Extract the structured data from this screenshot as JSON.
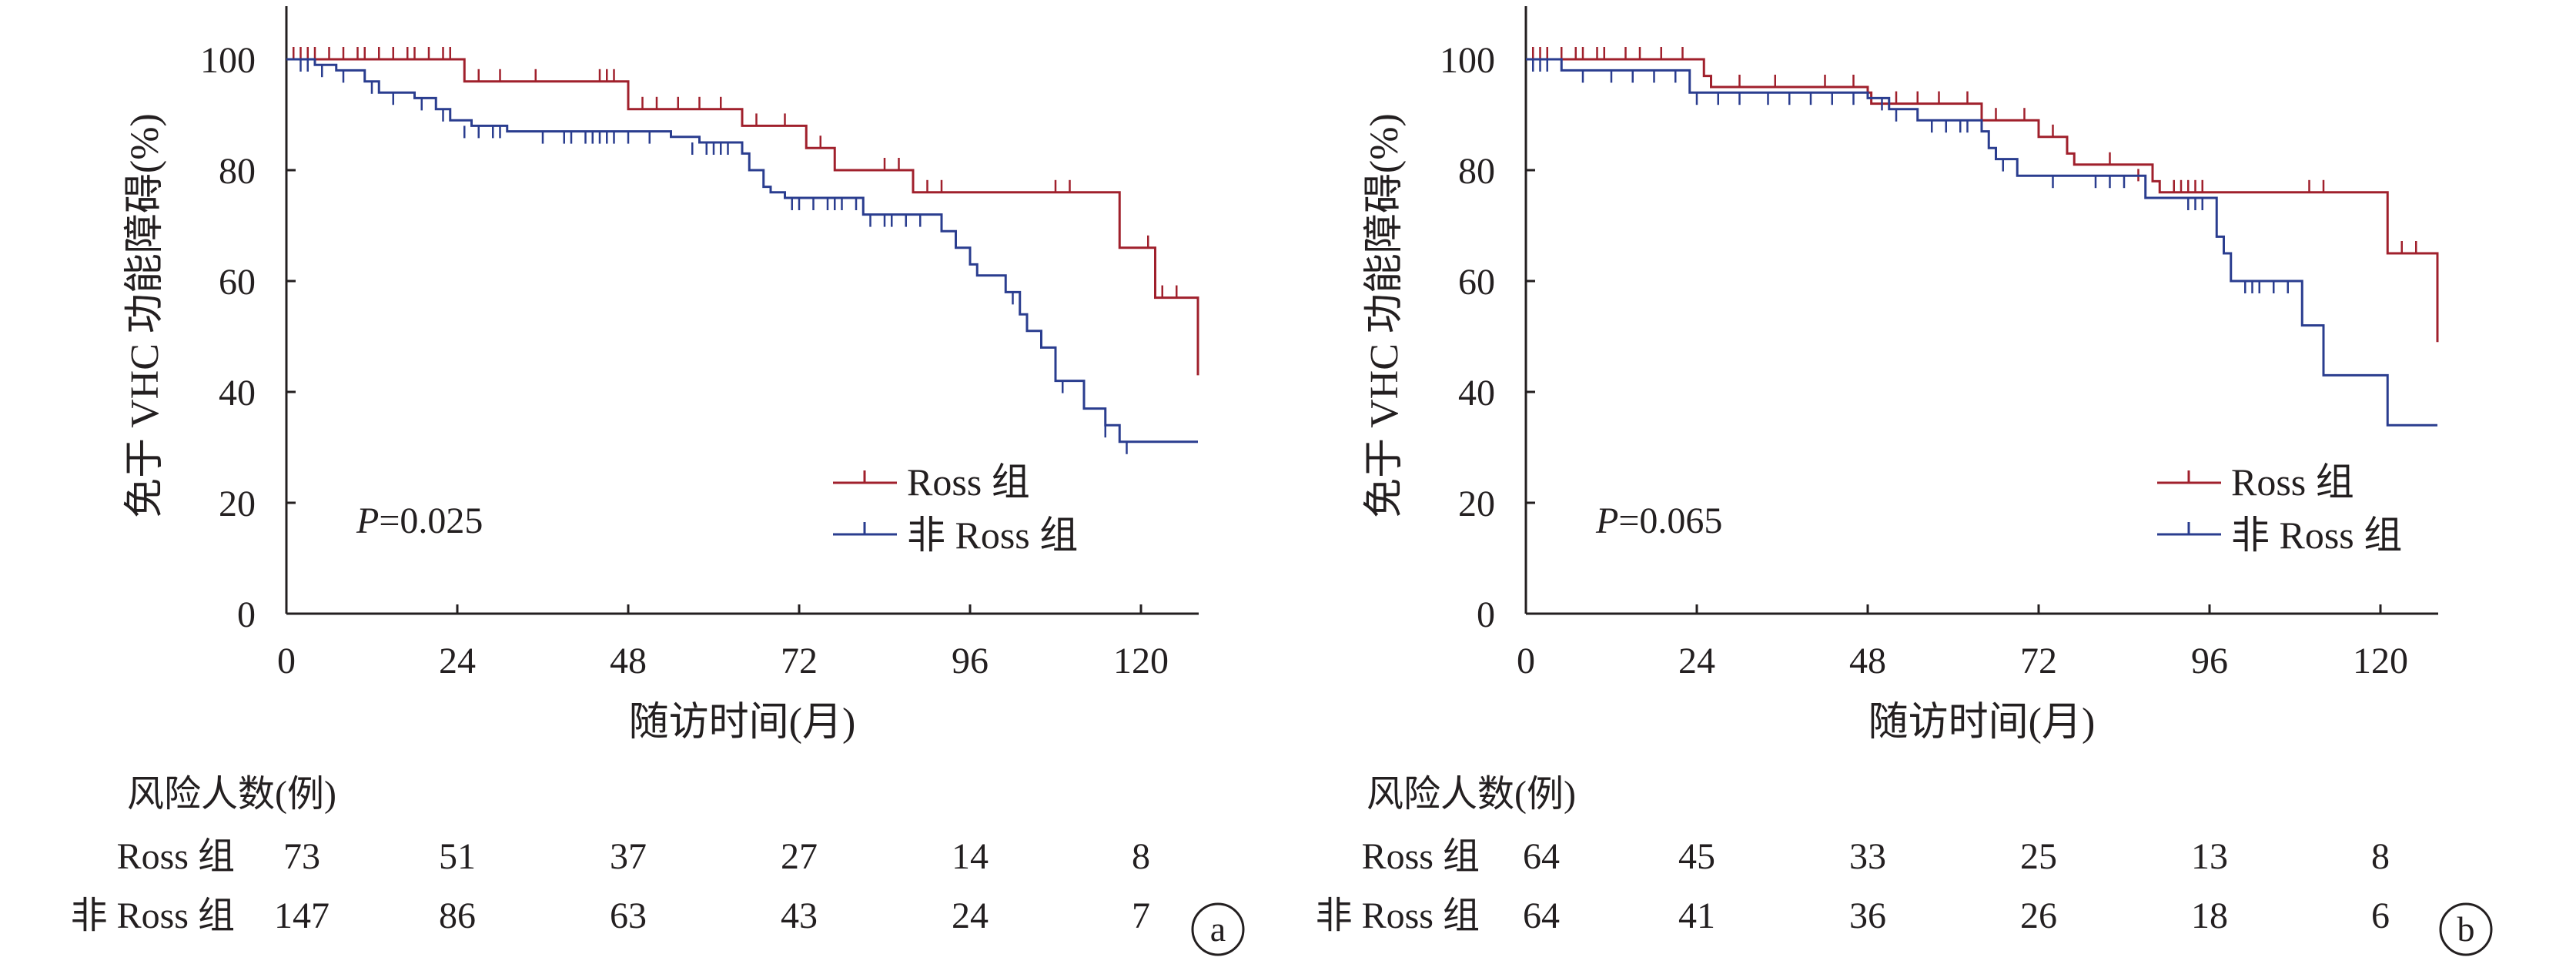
{
  "figure": {
    "panels": [
      {
        "letter": "a",
        "p_label": "P",
        "p_rest": "=0.025",
        "risk_title": "风险人数(例)",
        "risk_rows": [
          {
            "label": "Ross 组",
            "values": [
              "73",
              "51",
              "37",
              "27",
              "14",
              "8"
            ]
          },
          {
            "label": "非 Ross 组",
            "values": [
              "147",
              "86",
              "63",
              "43",
              "24",
              "7"
            ]
          }
        ]
      },
      {
        "letter": "b",
        "p_label": "P",
        "p_rest": "=0.065",
        "risk_title": "风险人数(例)",
        "risk_rows": [
          {
            "label": "Ross 组",
            "values": [
              "64",
              "45",
              "33",
              "25",
              "13",
              "8"
            ]
          },
          {
            "label": "非 Ross 组",
            "values": [
              "64",
              "41",
              "36",
              "26",
              "18",
              "6"
            ]
          }
        ]
      }
    ]
  },
  "colors": {
    "ross": "#a0202c",
    "non_ross": "#2a3d8f",
    "axis": "#231f20"
  },
  "chart_data": [
    {
      "type": "line",
      "title": "",
      "xlabel": "随访时间(月)",
      "ylabel": "免于 VHC 功能障碍(%)",
      "xlim": [
        0,
        128
      ],
      "ylim": [
        0,
        110
      ],
      "xticks": [
        0,
        24,
        48,
        72,
        96,
        120
      ],
      "yticks": [
        0,
        20,
        40,
        60,
        80,
        100
      ],
      "grid": false,
      "legend_position": "lower-right",
      "series": [
        {
          "name": "Ross 组",
          "color": "#a0202c",
          "steps": [
            [
              0,
              100
            ],
            [
              25,
              96
            ],
            [
              48,
              91
            ],
            [
              64,
              88
            ],
            [
              73,
              84
            ],
            [
              77,
              80
            ],
            [
              88,
              76
            ],
            [
              117,
              66
            ],
            [
              122,
              57
            ],
            [
              128,
              43
            ]
          ],
          "censored": [
            [
              1,
              100
            ],
            [
              2,
              100
            ],
            [
              3,
              100
            ],
            [
              4,
              100
            ],
            [
              6,
              100
            ],
            [
              8,
              100
            ],
            [
              10,
              100
            ],
            [
              11,
              100
            ],
            [
              13,
              100
            ],
            [
              15,
              100
            ],
            [
              17,
              100
            ],
            [
              18,
              100
            ],
            [
              20,
              100
            ],
            [
              22,
              100
            ],
            [
              23,
              100
            ],
            [
              27,
              96
            ],
            [
              30,
              96
            ],
            [
              35,
              96
            ],
            [
              44,
              96
            ],
            [
              45,
              96
            ],
            [
              46,
              96
            ],
            [
              50,
              91
            ],
            [
              52,
              91
            ],
            [
              55,
              91
            ],
            [
              58,
              91
            ],
            [
              61,
              91
            ],
            [
              66,
              88
            ],
            [
              70,
              88
            ],
            [
              75,
              84
            ],
            [
              84,
              80
            ],
            [
              86,
              80
            ],
            [
              90,
              76
            ],
            [
              92,
              76
            ],
            [
              108,
              76
            ],
            [
              110,
              76
            ],
            [
              121,
              66
            ],
            [
              123,
              57
            ],
            [
              125,
              57
            ]
          ]
        },
        {
          "name": "非 Ross 组",
          "color": "#2a3d8f",
          "steps": [
            [
              0,
              100
            ],
            [
              4,
              99
            ],
            [
              7,
              98
            ],
            [
              11,
              96
            ],
            [
              13,
              94
            ],
            [
              18,
              93
            ],
            [
              21,
              91
            ],
            [
              23,
              89
            ],
            [
              26,
              88
            ],
            [
              31,
              87
            ],
            [
              54,
              86
            ],
            [
              58,
              85
            ],
            [
              64,
              83
            ],
            [
              65,
              80
            ],
            [
              67,
              77
            ],
            [
              68,
              76
            ],
            [
              70,
              75
            ],
            [
              81,
              72
            ],
            [
              92,
              69
            ],
            [
              94,
              66
            ],
            [
              96,
              63
            ],
            [
              97,
              61
            ],
            [
              101,
              58
            ],
            [
              103,
              54
            ],
            [
              104,
              51
            ],
            [
              106,
              48
            ],
            [
              108,
              42
            ],
            [
              112,
              37
            ],
            [
              115,
              34
            ],
            [
              117,
              31
            ],
            [
              128,
              31
            ]
          ],
          "censored": [
            [
              2,
              100
            ],
            [
              3,
              100
            ],
            [
              5,
              99
            ],
            [
              8,
              98
            ],
            [
              12,
              96
            ],
            [
              15,
              94
            ],
            [
              19,
              93
            ],
            [
              22,
              91
            ],
            [
              25,
              88
            ],
            [
              27,
              88
            ],
            [
              29,
              88
            ],
            [
              30,
              88
            ],
            [
              36,
              87
            ],
            [
              39,
              87
            ],
            [
              40,
              87
            ],
            [
              42,
              87
            ],
            [
              43,
              87
            ],
            [
              44,
              87
            ],
            [
              45,
              87
            ],
            [
              46,
              87
            ],
            [
              48,
              87
            ],
            [
              51,
              87
            ],
            [
              57,
              85
            ],
            [
              59,
              85
            ],
            [
              60,
              85
            ],
            [
              61,
              85
            ],
            [
              62,
              85
            ],
            [
              71,
              75
            ],
            [
              72,
              75
            ],
            [
              74,
              75
            ],
            [
              76,
              75
            ],
            [
              77,
              75
            ],
            [
              78,
              75
            ],
            [
              80,
              75
            ],
            [
              82,
              72
            ],
            [
              84,
              72
            ],
            [
              85,
              72
            ],
            [
              87,
              72
            ],
            [
              89,
              72
            ],
            [
              102,
              58
            ],
            [
              109,
              42
            ],
            [
              115,
              34
            ],
            [
              118,
              31
            ]
          ]
        }
      ]
    },
    {
      "type": "line",
      "title": "",
      "xlabel": "随访时间(月)",
      "ylabel": "免于 VHC 功能障碍(%)",
      "xlim": [
        0,
        128
      ],
      "ylim": [
        0,
        110
      ],
      "xticks": [
        0,
        24,
        48,
        72,
        96,
        120
      ],
      "yticks": [
        0,
        20,
        40,
        60,
        80,
        100
      ],
      "grid": false,
      "legend_position": "lower-right",
      "series": [
        {
          "name": "Ross 组",
          "color": "#a0202c",
          "steps": [
            [
              0,
              100
            ],
            [
              25,
              97
            ],
            [
              26,
              95
            ],
            [
              48,
              94
            ],
            [
              48.5,
              92
            ],
            [
              64,
              89
            ],
            [
              72,
              86
            ],
            [
              76,
              83
            ],
            [
              77,
              81
            ],
            [
              88,
              78
            ],
            [
              89,
              76
            ],
            [
              121,
              65
            ],
            [
              128,
              49
            ]
          ],
          "censored": [
            [
              1,
              100
            ],
            [
              2,
              100
            ],
            [
              3,
              100
            ],
            [
              5,
              100
            ],
            [
              7,
              100
            ],
            [
              8,
              100
            ],
            [
              10,
              100
            ],
            [
              11,
              100
            ],
            [
              14,
              100
            ],
            [
              16,
              100
            ],
            [
              19,
              100
            ],
            [
              22,
              100
            ],
            [
              30,
              95
            ],
            [
              35,
              95
            ],
            [
              42,
              95
            ],
            [
              46,
              95
            ],
            [
              52,
              92
            ],
            [
              55,
              92
            ],
            [
              58,
              92
            ],
            [
              62,
              92
            ],
            [
              66,
              89
            ],
            [
              70,
              89
            ],
            [
              74,
              86
            ],
            [
              82,
              81
            ],
            [
              86,
              78
            ],
            [
              91,
              76
            ],
            [
              92,
              76
            ],
            [
              93,
              76
            ],
            [
              94,
              76
            ],
            [
              95,
              76
            ],
            [
              110,
              76
            ],
            [
              112,
              76
            ],
            [
              123,
              65
            ],
            [
              125,
              65
            ]
          ]
        },
        {
          "name": "非 Ross 组",
          "color": "#2a3d8f",
          "steps": [
            [
              0,
              100
            ],
            [
              5,
              98
            ],
            [
              23,
              94
            ],
            [
              48,
              93
            ],
            [
              51,
              91
            ],
            [
              55,
              89
            ],
            [
              64,
              87
            ],
            [
              65,
              84
            ],
            [
              66,
              82
            ],
            [
              69,
              79
            ],
            [
              87,
              75
            ],
            [
              97,
              68
            ],
            [
              98,
              65
            ],
            [
              99,
              60
            ],
            [
              109,
              52
            ],
            [
              112,
              43
            ],
            [
              121,
              34
            ],
            [
              128,
              34
            ]
          ],
          "censored": [
            [
              1,
              100
            ],
            [
              2,
              100
            ],
            [
              3,
              100
            ],
            [
              8,
              98
            ],
            [
              12,
              98
            ],
            [
              15,
              98
            ],
            [
              18,
              98
            ],
            [
              21,
              98
            ],
            [
              24,
              94
            ],
            [
              27,
              94
            ],
            [
              30,
              94
            ],
            [
              34,
              94
            ],
            [
              37,
              94
            ],
            [
              40,
              94
            ],
            [
              43,
              94
            ],
            [
              46,
              94
            ],
            [
              50,
              93
            ],
            [
              52,
              91
            ],
            [
              57,
              89
            ],
            [
              59,
              89
            ],
            [
              61,
              89
            ],
            [
              62,
              89
            ],
            [
              67,
              82
            ],
            [
              74,
              79
            ],
            [
              80,
              79
            ],
            [
              82,
              79
            ],
            [
              84,
              79
            ],
            [
              93,
              75
            ],
            [
              94,
              75
            ],
            [
              95,
              75
            ],
            [
              99,
              65
            ],
            [
              101,
              60
            ],
            [
              102,
              60
            ],
            [
              103,
              60
            ],
            [
              105,
              60
            ],
            [
              107,
              60
            ]
          ]
        }
      ]
    }
  ]
}
